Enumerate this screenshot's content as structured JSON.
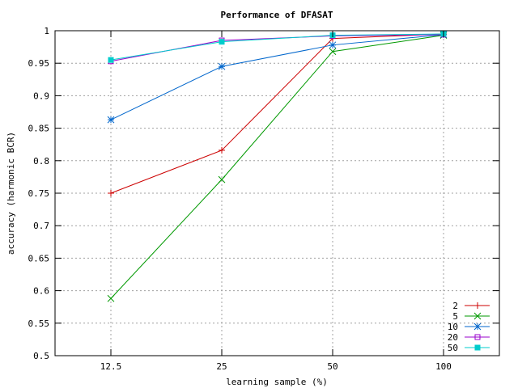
{
  "chart_data": {
    "type": "line",
    "title": "Performance of DFASAT",
    "xlabel": "learning sample (%)",
    "ylabel": "accuracy (harmonic BCR)",
    "categories": [
      "12.5",
      "25",
      "50",
      "100"
    ],
    "ylim": [
      0.5,
      1.0
    ],
    "yticks": [
      "0.5",
      "0.55",
      "0.6",
      "0.65",
      "0.7",
      "0.75",
      "0.8",
      "0.85",
      "0.9",
      "0.95",
      "1"
    ],
    "grid": true,
    "legend_position": "bottom-right",
    "series": [
      {
        "name": "2",
        "color": "#cc0000",
        "marker": "plus",
        "values": [
          0.75,
          0.816,
          0.988,
          0.995
        ]
      },
      {
        "name": "5",
        "color": "#009900",
        "marker": "cross",
        "values": [
          0.588,
          0.771,
          0.968,
          0.993
        ]
      },
      {
        "name": "10",
        "color": "#0066cc",
        "marker": "star",
        "values": [
          0.863,
          0.945,
          0.978,
          0.994
        ]
      },
      {
        "name": "20",
        "color": "#9900cc",
        "marker": "open-square",
        "values": [
          0.953,
          0.985,
          0.992,
          0.994
        ]
      },
      {
        "name": "50",
        "color": "#00cccc",
        "marker": "filled-square",
        "values": [
          0.955,
          0.983,
          0.993,
          0.995
        ]
      }
    ]
  }
}
